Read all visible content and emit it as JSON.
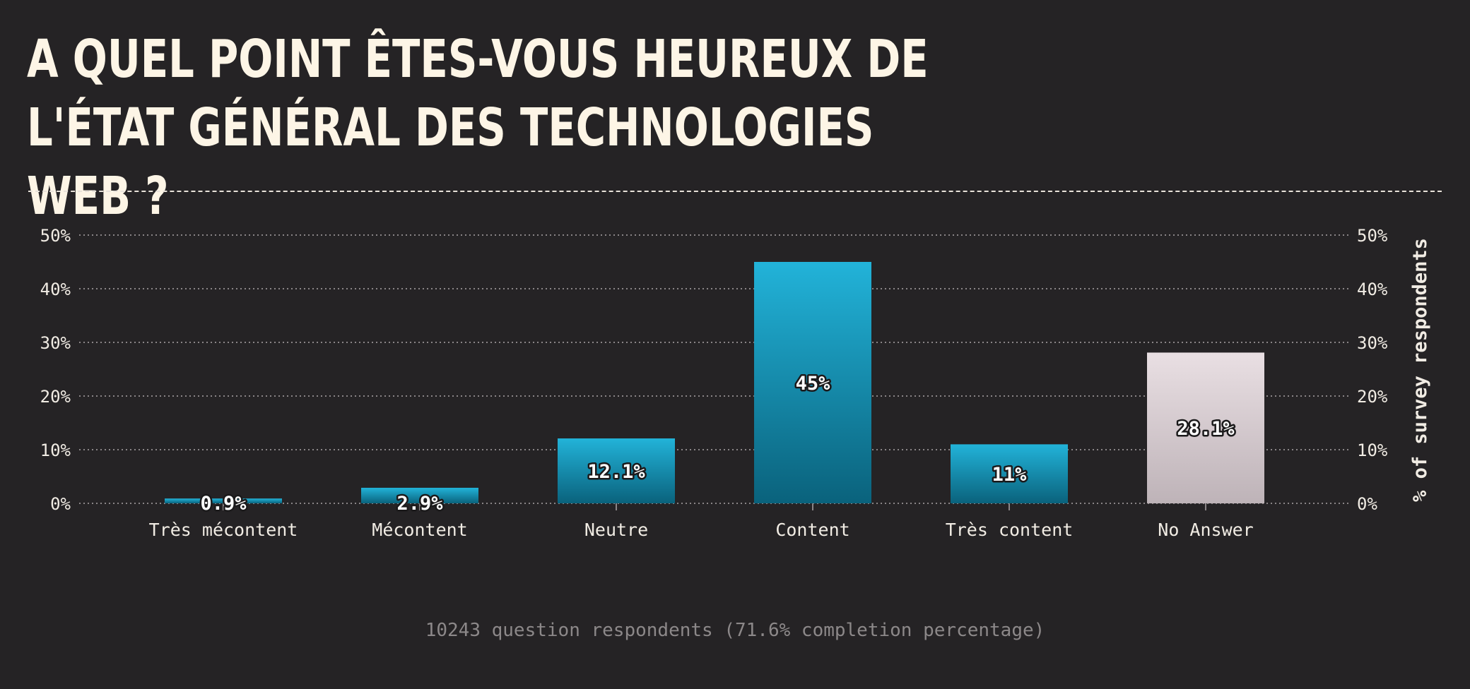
{
  "title": "A quel point êtes-vous heureux de l'état général des technologies web ?",
  "footer": "10243 question respondents (71.6% completion percentage)",
  "chart_data": {
    "type": "bar",
    "categories": [
      "Très mécontent",
      "Mécontent",
      "Neutre",
      "Content",
      "Très content",
      "No Answer"
    ],
    "values": [
      0.9,
      2.9,
      12.1,
      45,
      11,
      28.1
    ],
    "data_labels": [
      "0.9%",
      "2.9%",
      "12.1%",
      "45%",
      "11%",
      "28.1%"
    ],
    "ylabel": "% of survey respondents",
    "ylim": [
      0,
      50
    ],
    "yticks": [
      "0%",
      "10%",
      "20%",
      "30%",
      "40%",
      "50%"
    ],
    "ytick_values": [
      0,
      10,
      20,
      30,
      40,
      50
    ],
    "grid": true,
    "colors": {
      "bar_top": "#22b3d9",
      "bar_bottom": "#0a627c",
      "no_answer_top": "#e9dfe3",
      "no_answer_bottom": "#beb3b8",
      "grid": "#8a8587",
      "text": "#f1ece4"
    }
  }
}
